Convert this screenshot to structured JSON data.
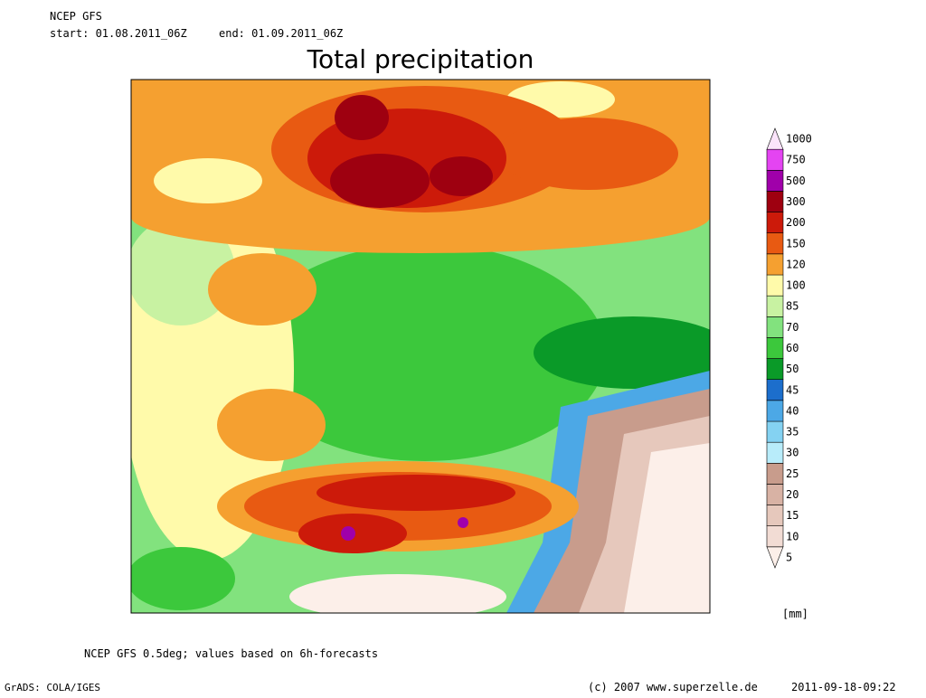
{
  "header": {
    "model": "NCEP GFS",
    "start": "start: 01.08.2011_06Z",
    "end": "end: 01.09.2011_06Z"
  },
  "title": "Total precipitation",
  "legend": {
    "unit": "[mm]",
    "levels": [
      {
        "value": 5,
        "color": "#fcefe9"
      },
      {
        "value": 10,
        "color": "#f2dcd4"
      },
      {
        "value": 15,
        "color": "#e6c8bc"
      },
      {
        "value": 20,
        "color": "#d8b2a4"
      },
      {
        "value": 25,
        "color": "#c89c8c"
      },
      {
        "value": 30,
        "color": "#b8ecfa"
      },
      {
        "value": 35,
        "color": "#84d2f2"
      },
      {
        "value": 40,
        "color": "#4ca8e6"
      },
      {
        "value": 45,
        "color": "#1c6ecc"
      },
      {
        "value": 50,
        "color": "#0a9a28"
      },
      {
        "value": 60,
        "color": "#3cc83c"
      },
      {
        "value": 70,
        "color": "#82e27e"
      },
      {
        "value": 85,
        "color": "#c8f2a2"
      },
      {
        "value": 100,
        "color": "#fffaaa"
      },
      {
        "value": 120,
        "color": "#f5a030"
      },
      {
        "value": 150,
        "color": "#e85a12"
      },
      {
        "value": 200,
        "color": "#cc1a0a"
      },
      {
        "value": 300,
        "color": "#9e0010"
      },
      {
        "value": 500,
        "color": "#a000aa"
      },
      {
        "value": 750,
        "color": "#e444f2"
      },
      {
        "value": 1000,
        "color": "#fbe4fb"
      }
    ]
  },
  "footer": {
    "note": "NCEP GFS 0.5deg; values based on 6h-forecasts",
    "software": "GrADS: COLA/IGES",
    "copyright": "(c) 2007 www.superzelle.de",
    "timestamp": "2011-09-18-09:22"
  }
}
